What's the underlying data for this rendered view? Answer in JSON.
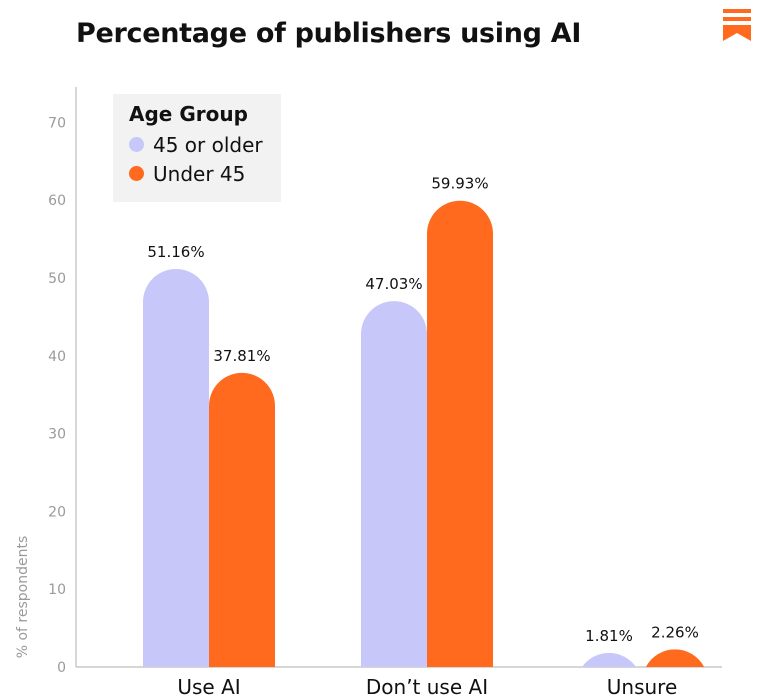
{
  "title": "Percentage of publishers using AI",
  "logo_icon": "substack-bookmark-icon",
  "colors": {
    "older": "#c8c7fa",
    "younger": "#ff6a1f",
    "logo": "#ff6a1f"
  },
  "legend": {
    "title": "Age Group",
    "items": [
      "45 or older",
      "Under 45"
    ]
  },
  "chart_data": {
    "type": "bar",
    "title": "Percentage of publishers using AI",
    "ylabel": "% of respondents",
    "xlabel": "",
    "categories": [
      "Use AI",
      "Don’t use AI",
      "Unsure"
    ],
    "series": [
      {
        "name": "45 or older",
        "values": [
          51.16,
          47.03,
          1.81
        ],
        "labels": [
          "51.16%",
          "47.03%",
          "1.81%"
        ]
      },
      {
        "name": "Under 45",
        "values": [
          37.81,
          59.93,
          2.26
        ],
        "labels": [
          "37.81%",
          "59.93%",
          "2.26%"
        ]
      }
    ],
    "ylim": [
      0,
      75
    ],
    "yticks": [
      "0",
      "10",
      "20",
      "30",
      "40",
      "50",
      "60",
      "70"
    ],
    "legend_position": "top-left",
    "grid": false
  }
}
